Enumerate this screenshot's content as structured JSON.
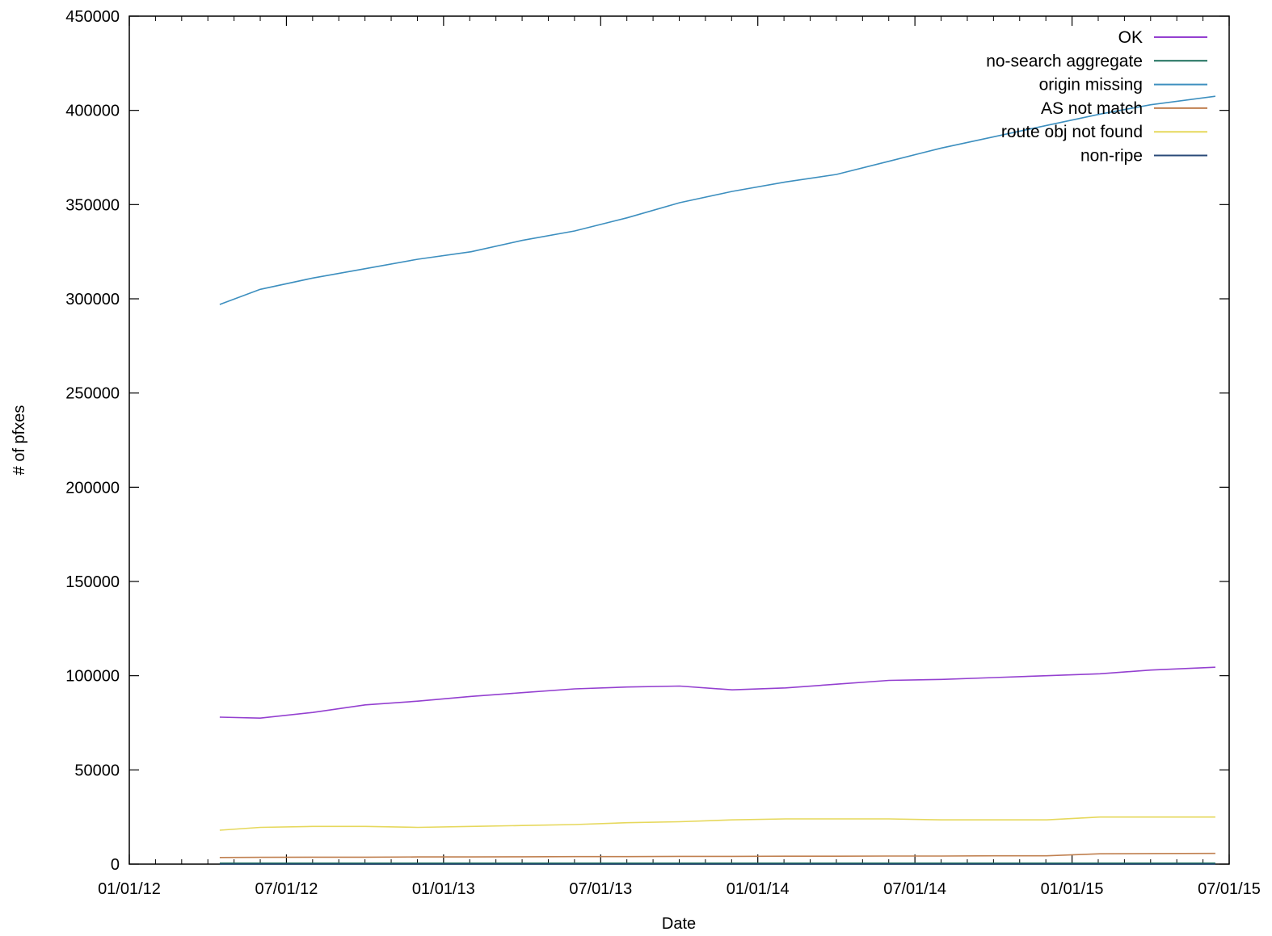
{
  "chart_data": {
    "type": "line",
    "title": "",
    "xlabel": "Date",
    "ylabel": "# of pfxes",
    "xlim": [
      "2012-01-01",
      "2015-07-01"
    ],
    "ylim": [
      0,
      450000
    ],
    "x_tick_labels": [
      "01/01/12",
      "07/01/12",
      "01/01/13",
      "07/01/13",
      "01/01/14",
      "07/01/14",
      "01/01/15",
      "07/01/15"
    ],
    "y_tick_labels": [
      "0",
      "50000",
      "100000",
      "150000",
      "200000",
      "250000",
      "300000",
      "350000",
      "400000",
      "450000"
    ],
    "grid": false,
    "legend_position": "top-right",
    "x": [
      "2012-04-15",
      "2012-06-01",
      "2012-08-01",
      "2012-10-01",
      "2012-12-01",
      "2013-02-01",
      "2013-04-01",
      "2013-06-01",
      "2013-08-01",
      "2013-10-01",
      "2013-12-01",
      "2014-02-01",
      "2014-04-01",
      "2014-06-01",
      "2014-08-01",
      "2014-10-01",
      "2014-12-01",
      "2015-02-01",
      "2015-04-01",
      "2015-06-15"
    ],
    "series": [
      {
        "name": "OK",
        "color": "#9440d0",
        "values": [
          78000,
          77500,
          80500,
          84500,
          86500,
          89000,
          91000,
          93000,
          94000,
          94500,
          92500,
          93500,
          95500,
          97500,
          98000,
          99000,
          100000,
          101000,
          103000,
          104500
        ]
      },
      {
        "name": "no-search aggregate",
        "color": "#1a6e5a",
        "values": [
          500,
          500,
          500,
          500,
          500,
          500,
          500,
          500,
          500,
          500,
          500,
          500,
          500,
          500,
          500,
          500,
          500,
          500,
          500,
          500
        ]
      },
      {
        "name": "origin missing",
        "color": "#3d8fbf",
        "values": [
          297000,
          305000,
          311000,
          316000,
          321000,
          325000,
          331000,
          336000,
          343000,
          351000,
          357000,
          362000,
          366000,
          373000,
          380000,
          386000,
          392000,
          398000,
          403000,
          407500
        ]
      },
      {
        "name": "AS not match",
        "color": "#c08050",
        "values": [
          3500,
          3600,
          3700,
          3700,
          3800,
          3800,
          3900,
          4000,
          4000,
          4100,
          4100,
          4200,
          4200,
          4300,
          4300,
          4400,
          4400,
          5500,
          5600,
          5700
        ]
      },
      {
        "name": "route obj not found",
        "color": "#e6d85c",
        "values": [
          18000,
          19500,
          20000,
          20000,
          19500,
          20000,
          20500,
          21000,
          22000,
          22500,
          23500,
          24000,
          24000,
          24000,
          23500,
          23500,
          23500,
          25000,
          25000,
          25000
        ]
      },
      {
        "name": "non-ripe",
        "color": "#2a4a78",
        "values": [
          0,
          0,
          0,
          0,
          0,
          0,
          0,
          0,
          0,
          0,
          0,
          0,
          0,
          0,
          0,
          0,
          0,
          0,
          0,
          0
        ]
      }
    ]
  }
}
